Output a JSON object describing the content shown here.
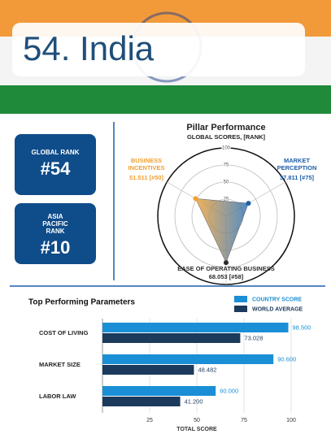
{
  "header": {
    "title": "54. India"
  },
  "ranks": [
    {
      "label": "GLOBAL RANK",
      "value": "#54"
    },
    {
      "label": "ASIA PACIFIC RANK",
      "value": "#10"
    }
  ],
  "chart_data": [
    {
      "type": "radar",
      "title": "Pillar Performance",
      "subtitle": "GLOBAL SCORES, [RANK]",
      "categories": [
        "BUSINESS INCENTIVES",
        "MARKET PERCEPTION",
        "EASE OF OPERATING BUSINESS"
      ],
      "values": [
        51.511,
        37.811,
        68.053
      ],
      "value_labels": [
        "51.511 [#50]",
        "37.811 [#75]",
        "68.053 [#58]"
      ],
      "colors": [
        "#f0a030",
        "#1f5fa8",
        "#2b2b2b"
      ],
      "rlim": [
        0,
        100
      ],
      "rticks": [
        25,
        50,
        75,
        100
      ]
    },
    {
      "type": "hbar",
      "title": "Top Performing Parameters",
      "categories": [
        "COST OF LIVING",
        "MARKET SIZE",
        "LABOR LAW"
      ],
      "series": [
        {
          "name": "COUNTRY SCORE",
          "color": "#1a8fd6",
          "values": [
            98.5,
            90.6,
            60
          ],
          "value_labels": [
            "98.500",
            "90.600",
            "60.000"
          ]
        },
        {
          "name": "WORLD AVERAGE",
          "color": "#1b3a5c",
          "values": [
            73.028,
            48.482,
            41.2
          ],
          "value_labels": [
            "73.028",
            "48.482",
            "41.200"
          ]
        }
      ],
      "xlim": [
        0,
        100
      ],
      "xticks": [
        25,
        50,
        75,
        100
      ],
      "xlabel": "TOTAL SCORE",
      "grid": true
    }
  ]
}
